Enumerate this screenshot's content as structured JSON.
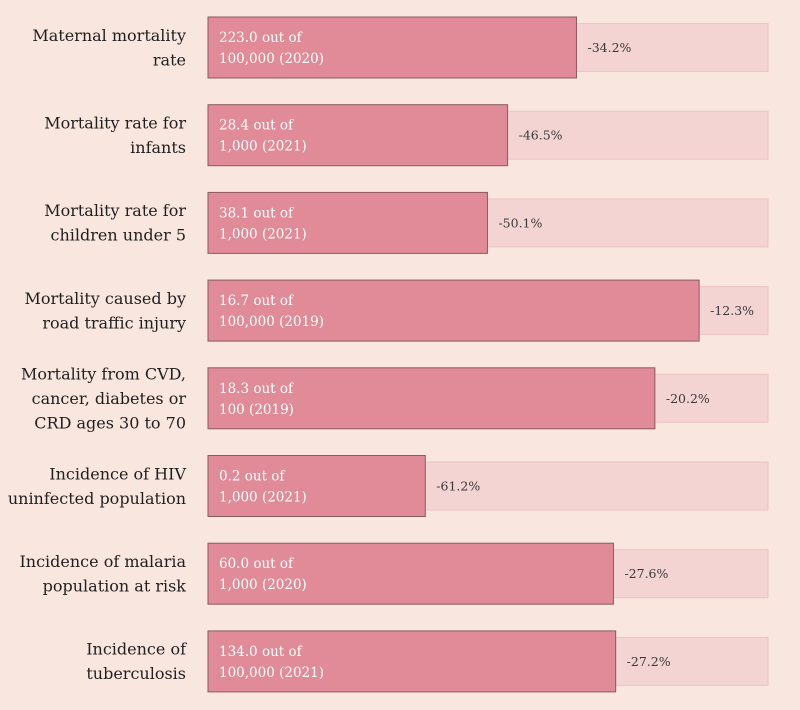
{
  "chart_data": {
    "type": "bar",
    "orientation": "horizontal",
    "rows": [
      {
        "label_lines": [
          "Maternal mortality",
          "rate"
        ],
        "value_lines": [
          "223.0 out of",
          "100,000 (2020)"
        ],
        "change": "-34.2%",
        "progress": 0.658
      },
      {
        "label_lines": [
          "Mortality rate for",
          "infants"
        ],
        "value_lines": [
          "28.4 out of",
          "1,000 (2021)"
        ],
        "change": "-46.5%",
        "progress": 0.535
      },
      {
        "label_lines": [
          "Mortality rate for",
          "children under 5"
        ],
        "value_lines": [
          "38.1 out of",
          "1,000 (2021)"
        ],
        "change": "-50.1%",
        "progress": 0.499
      },
      {
        "label_lines": [
          "Mortality caused by",
          "road traffic injury"
        ],
        "value_lines": [
          "16.7 out of",
          "100,000 (2019)"
        ],
        "change": "-12.3%",
        "progress": 0.877
      },
      {
        "label_lines": [
          "Mortality from CVD,",
          "cancer, diabetes or",
          "CRD ages 30 to 70"
        ],
        "value_lines": [
          "18.3 out of",
          "100 (2019)"
        ],
        "change": "-20.2%",
        "progress": 0.798
      },
      {
        "label_lines": [
          "Incidence of HIV",
          "uninfected population"
        ],
        "value_lines": [
          "0.2 out of",
          "1,000 (2021)"
        ],
        "change": "-61.2%",
        "progress": 0.388
      },
      {
        "label_lines": [
          "Incidence of malaria",
          "population at risk"
        ],
        "value_lines": [
          "60.0 out of",
          "1,000 (2020)"
        ],
        "change": "-27.6%",
        "progress": 0.724
      },
      {
        "label_lines": [
          "Incidence of",
          "tuberculosis"
        ],
        "value_lines": [
          "134.0 out of",
          "100,000 (2021)"
        ],
        "change": "-27.2%",
        "progress": 0.728
      }
    ],
    "colors": {
      "background": "#f9e6df",
      "bar": "#e08b97",
      "bar_border": "#8a5a5f",
      "track": "#f3d4d2",
      "track_border": "#ebc4c4"
    }
  }
}
